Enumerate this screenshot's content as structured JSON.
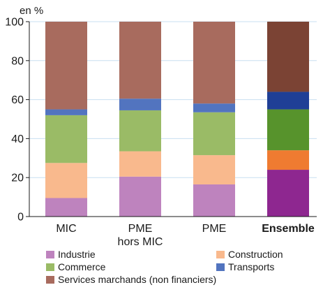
{
  "chart_data": {
    "type": "bar",
    "stacked": true,
    "unit_label": "en %",
    "ylim": [
      0,
      100
    ],
    "yticks": [
      0,
      20,
      40,
      60,
      80,
      100
    ],
    "grid": true,
    "legend_position": "bottom",
    "categories": [
      {
        "lines": [
          "MIC"
        ],
        "bold": false
      },
      {
        "lines": [
          "PME",
          "hors MIC"
        ],
        "bold": false
      },
      {
        "lines": [
          "PME"
        ],
        "bold": false
      },
      {
        "lines": [
          "Ensemble"
        ],
        "bold": true
      }
    ],
    "series": [
      {
        "name": "Industrie",
        "values": [
          9.5,
          20.5,
          16.5,
          24
        ],
        "color": "#be83be",
        "highlight_color": "#8e2790"
      },
      {
        "name": "Construction",
        "values": [
          18,
          13,
          15,
          10
        ],
        "color": "#f9b98d",
        "highlight_color": "#ef7b31"
      },
      {
        "name": "Commerce",
        "values": [
          24.5,
          21,
          22,
          21
        ],
        "color": "#9abb66",
        "highlight_color": "#57932c"
      },
      {
        "name": "Transports",
        "values": [
          3,
          6,
          4.5,
          9
        ],
        "color": "#5274bf",
        "highlight_color": "#1f3f96"
      },
      {
        "name": "Services marchands (non financiers)",
        "values": [
          45,
          39.5,
          42,
          36
        ],
        "color": "#a86b5e",
        "highlight_color": "#7b4334"
      }
    ]
  }
}
